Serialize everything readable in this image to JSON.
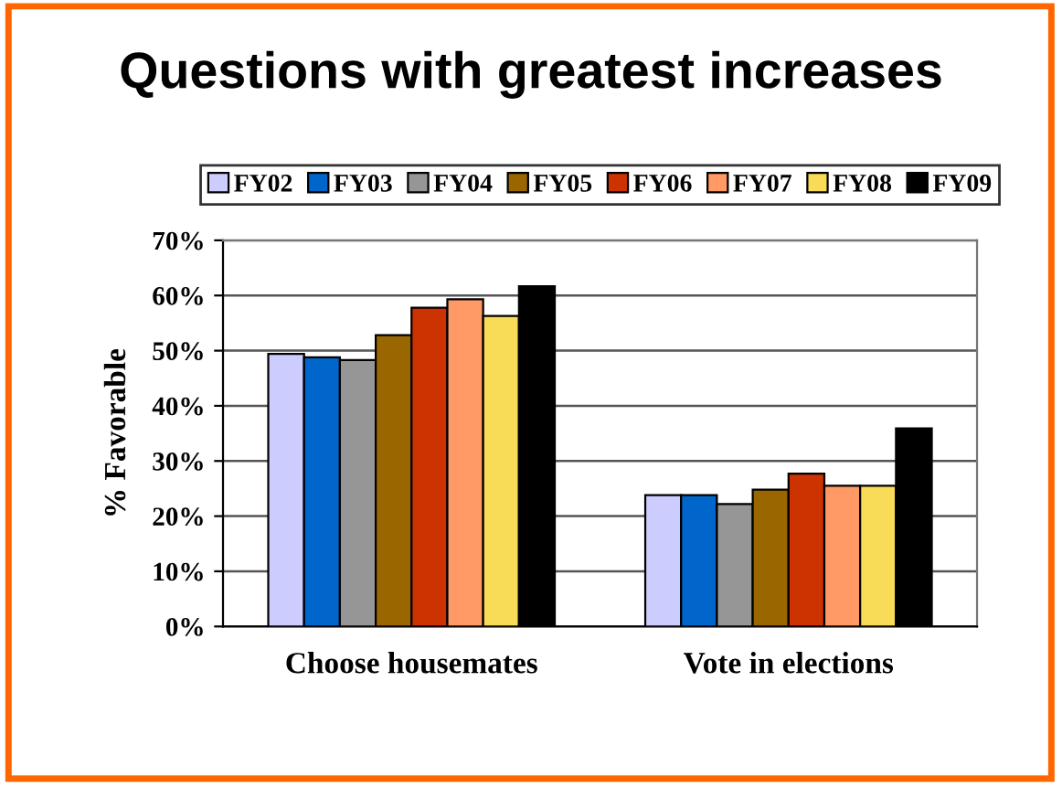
{
  "chart_data": {
    "type": "bar",
    "title": "Questions with greatest increases",
    "ylabel": "% Favorable",
    "categories": [
      "Choose housemates",
      "Vote in elections"
    ],
    "series": [
      {
        "name": "FY02",
        "color": "#ccccff",
        "values": [
          49.4,
          23.8
        ]
      },
      {
        "name": "FY03",
        "color": "#0066cc",
        "values": [
          48.8,
          23.8
        ]
      },
      {
        "name": "FY04",
        "color": "#969696",
        "values": [
          48.3,
          22.2
        ]
      },
      {
        "name": "FY05",
        "color": "#996600",
        "values": [
          52.8,
          24.8
        ]
      },
      {
        "name": "FY06",
        "color": "#cc3300",
        "values": [
          57.8,
          27.7
        ]
      },
      {
        "name": "FY07",
        "color": "#ff9966",
        "values": [
          59.3,
          25.5
        ]
      },
      {
        "name": "FY08",
        "color": "#f8dc58",
        "values": [
          56.3,
          25.5
        ]
      },
      {
        "name": "FY09",
        "color": "#000000",
        "values": [
          61.7,
          35.9
        ]
      }
    ],
    "ylim": [
      0,
      70
    ],
    "yticks": [
      {
        "value": 0,
        "label": "0%"
      },
      {
        "value": 10,
        "label": "10%"
      },
      {
        "value": 20,
        "label": "20%"
      },
      {
        "value": 30,
        "label": "30%"
      },
      {
        "value": 40,
        "label": "40%"
      },
      {
        "value": 50,
        "label": "50%"
      },
      {
        "value": 60,
        "label": "60%"
      },
      {
        "value": 70,
        "label": "70%"
      }
    ],
    "grid": "y",
    "legend": "top"
  }
}
